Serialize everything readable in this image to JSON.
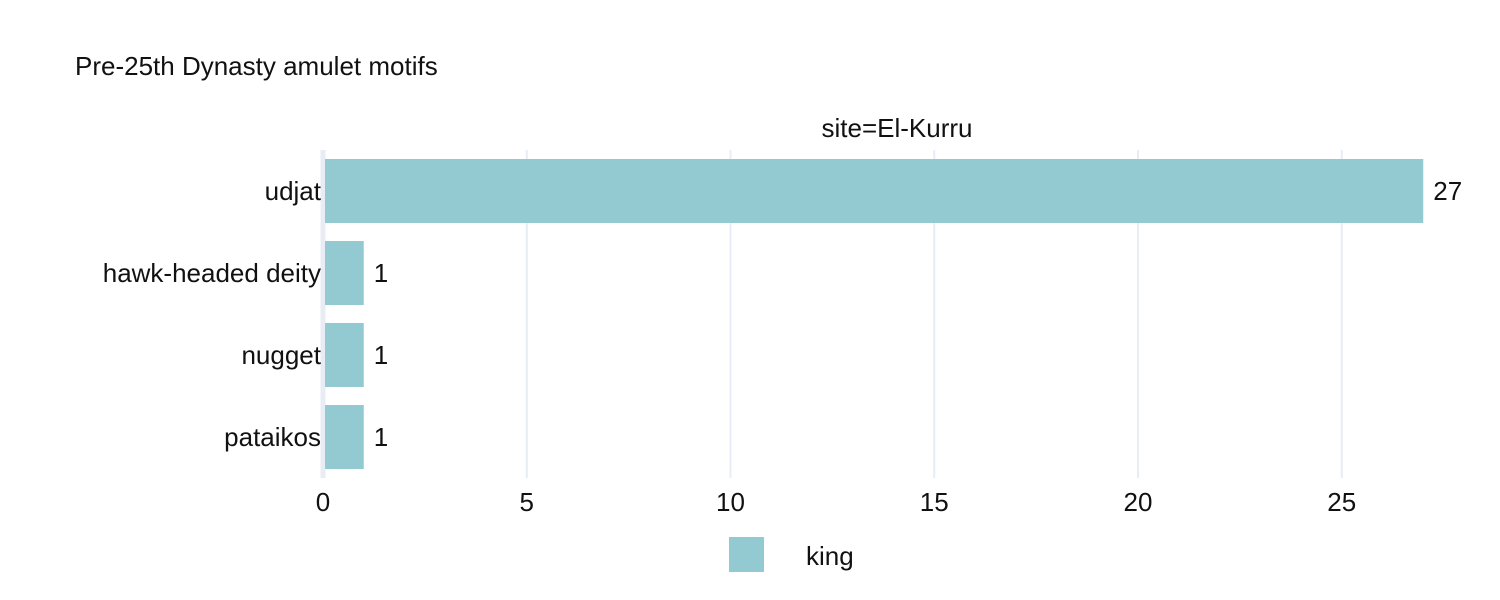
{
  "chart_data": {
    "type": "bar",
    "orientation": "horizontal",
    "title": "Pre-25th Dynasty amulet motifs",
    "facet_label": "site=El-Kurru",
    "categories": [
      "udjat",
      "hawk-headed deity",
      "nugget",
      "pataikos"
    ],
    "series": [
      {
        "name": "king",
        "values": [
          27,
          1,
          1,
          1
        ],
        "color": "#93cad2"
      }
    ],
    "xlim": [
      0,
      28
    ],
    "xticks": [
      "0",
      "5",
      "10",
      "15",
      "20",
      "25"
    ],
    "grid": true,
    "legend": "bottom-center",
    "colors": {
      "grid": "#e8ecf5",
      "text": "#111111"
    }
  }
}
